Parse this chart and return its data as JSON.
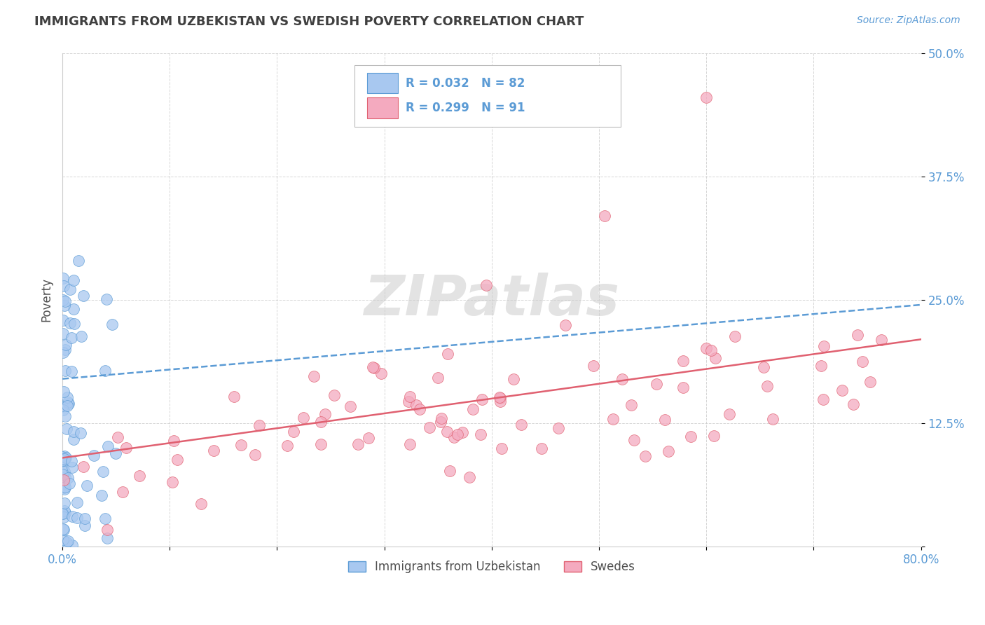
{
  "title": "IMMIGRANTS FROM UZBEKISTAN VS SWEDISH POVERTY CORRELATION CHART",
  "source_text": "Source: ZipAtlas.com",
  "ylabel": "Poverty",
  "xlim": [
    0.0,
    0.8
  ],
  "ylim": [
    0.0,
    0.5
  ],
  "ytick_labels": [
    "",
    "12.5%",
    "25.0%",
    "37.5%",
    "50.0%"
  ],
  "legend_label1": "Immigrants from Uzbekistan",
  "legend_label2": "Swedes",
  "color_blue_fill": "#A8C8F0",
  "color_pink_fill": "#F4AABF",
  "color_blue": "#5B9BD5",
  "color_pink": "#E06070",
  "color_axis": "#5B9BD5",
  "color_grid": "#CCCCCC",
  "watermark": "ZIPatlas",
  "background_color": "#FFFFFF",
  "title_color": "#404040",
  "title_fontsize": 13,
  "legend_r1_text": "R = 0.032   N = 82",
  "legend_r2_text": "R = 0.299   N = 91",
  "blue_trend_x": [
    0.0,
    0.8
  ],
  "blue_trend_y": [
    0.17,
    0.245
  ],
  "pink_trend_x": [
    0.0,
    0.8
  ],
  "pink_trend_y": [
    0.09,
    0.21
  ]
}
